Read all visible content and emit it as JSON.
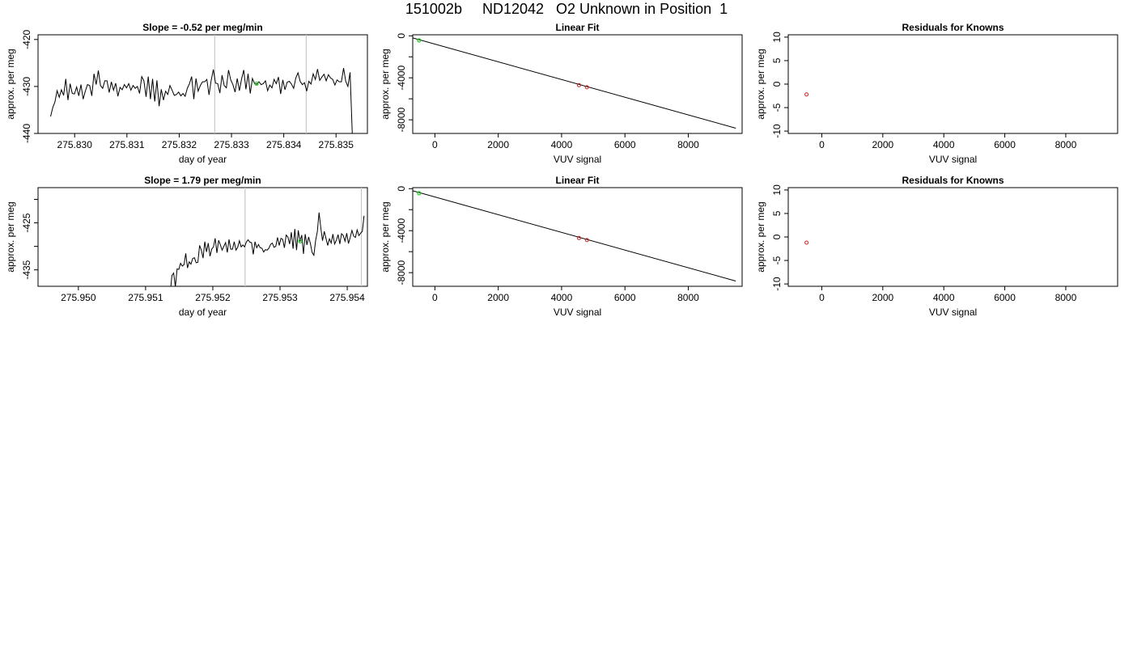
{
  "title": "151002b     ND12042   O2 Unknown in Position  1",
  "chart_data": [
    {
      "type": "line",
      "title": "Slope =  -0.52  per meg/min",
      "xlabel": "day of year",
      "ylabel": "approx. per meg",
      "xlim": [
        275.8293,
        275.8356
      ],
      "ylim": [
        -440,
        -419
      ],
      "xticks": [
        275.83,
        275.831,
        275.832,
        275.833,
        275.834,
        275.835
      ],
      "xtick_labels": [
        "275.830",
        "275.831",
        "275.832",
        "275.833",
        "275.834",
        "275.835"
      ],
      "yticks": [
        -440,
        -430,
        -420
      ],
      "ytick_labels": [
        "-440",
        "-430",
        "-420"
      ],
      "vlines": [
        275.83268,
        275.83443
      ],
      "marker": {
        "x": 275.83348,
        "y": -429.4
      },
      "series": [
        {
          "x_start": 275.82954,
          "x_end": 275.83531,
          "values": [
            -436.4,
            -434.5,
            -433.3,
            -430.9,
            -432.3,
            -430.7,
            -431.9,
            -428.4,
            -432.9,
            -429.4,
            -431.5,
            -431.6,
            -430.1,
            -432.0,
            -429.6,
            -432.7,
            -431.0,
            -429.6,
            -429.8,
            -432.0,
            -427.3,
            -429.6,
            -426.6,
            -429.8,
            -430.4,
            -428.8,
            -428.8,
            -431.3,
            -429.0,
            -430.8,
            -429.3,
            -432.1,
            -430.2,
            -430.7,
            -429.6,
            -430.3,
            -429.4,
            -430.8,
            -429.8,
            -430.4,
            -430.0,
            -431.5,
            -427.9,
            -428.8,
            -432.2,
            -427.9,
            -432.7,
            -428.4,
            -433.2,
            -428.7,
            -434.2,
            -430.6,
            -432.9,
            -431.0,
            -431.7,
            -429.8,
            -430.8,
            -431.9,
            -431.7,
            -431.2,
            -432.0,
            -431.5,
            -432.1,
            -430.4,
            -429.4,
            -427.9,
            -432.7,
            -428.3,
            -431.0,
            -429.8,
            -429.0,
            -429.0,
            -428.5,
            -431.8,
            -428.7,
            -426.4,
            -429.3,
            -429.4,
            -431.4,
            -427.6,
            -429.8,
            -430.3,
            -426.5,
            -428.6,
            -429.6,
            -431.2,
            -428.3,
            -430.9,
            -428.4,
            -426.5,
            -430.6,
            -427.3,
            -431.5,
            -428.3,
            -429.4,
            -429.5,
            -429.0,
            -429.6,
            -429.4,
            -428.8,
            -430.9,
            -429.7,
            -430.3,
            -428.5,
            -429.4,
            -428.0,
            -431.6,
            -428.6,
            -430.7,
            -429.1,
            -428.9,
            -429.5,
            -430.4,
            -428.2,
            -427.1,
            -428.9,
            -429.6,
            -429.2,
            -431.0,
            -428.9,
            -429.5,
            -427.3,
            -428.5,
            -426.3,
            -428.7,
            -428.0,
            -427.4,
            -428.8,
            -427.5,
            -428.2,
            -428.5,
            -429.7,
            -428.6,
            -429.0,
            -429.0,
            -426.1,
            -428.9,
            -430.0,
            -427.0,
            -440.0
          ]
        }
      ]
    },
    {
      "type": "scatter",
      "title": "Linear Fit",
      "xlabel": "VUV signal",
      "ylabel": "approx. per meg",
      "xlim": [
        -700,
        9700
      ],
      "ylim": [
        -9300,
        100
      ],
      "xticks": [
        0,
        2000,
        4000,
        6000,
        8000
      ],
      "xtick_labels": [
        "0",
        "2000",
        "4000",
        "6000",
        "8000"
      ],
      "yticks": [
        0,
        -4000,
        -8000
      ],
      "ytick_labels": [
        "0",
        "-4000",
        "-8000"
      ],
      "minor_yticks": [
        -2000,
        -6000
      ],
      "fit_line": {
        "x": [
          -700,
          9500
        ],
        "y": [
          -200,
          -8800
        ]
      },
      "points_green": [
        {
          "x": -500,
          "y": -430
        }
      ],
      "points_red": [
        {
          "x": 4550,
          "y": -4700
        },
        {
          "x": 4800,
          "y": -4900
        }
      ]
    },
    {
      "type": "scatter",
      "title": "Residuals for Knowns",
      "xlabel": "VUV signal",
      "ylabel": "approx. per meg",
      "xlim": [
        -1100,
        9700
      ],
      "ylim": [
        -10.5,
        10.5
      ],
      "xticks": [
        0,
        2000,
        4000,
        6000,
        8000
      ],
      "xtick_labels": [
        "0",
        "2000",
        "4000",
        "6000",
        "8000"
      ],
      "yticks": [
        -10,
        -5,
        0,
        5,
        10
      ],
      "ytick_labels": [
        "-10",
        "-5",
        "0",
        "5",
        "10"
      ],
      "points_red": [
        {
          "x": -500,
          "y": -2.2
        }
      ]
    },
    {
      "type": "line",
      "title": "Slope =  1.79  per meg/min",
      "xlabel": "day of year",
      "ylabel": "approx. per meg",
      "xlim": [
        275.9494,
        275.9543
      ],
      "ylim": [
        -438.5,
        -417.5
      ],
      "xticks": [
        275.95,
        275.951,
        275.952,
        275.953,
        275.954
      ],
      "xtick_labels": [
        "275.950",
        "275.951",
        "275.952",
        "275.953",
        "275.954"
      ],
      "yticks": [
        -435,
        -425
      ],
      "ytick_labels": [
        "-435",
        "-425"
      ],
      "minor_yticks": [
        -430,
        -420
      ],
      "vlines": [
        275.95248,
        275.95421
      ],
      "marker": {
        "x": 275.9533,
        "y": -428.9
      },
      "series": [
        {
          "x_start": 275.95134,
          "x_end": 275.95425,
          "values": [
            -438.6,
            -440.0,
            -436.2,
            -435.7,
            -438.6,
            -434.8,
            -434.9,
            -433.6,
            -434.2,
            -433.9,
            -431.5,
            -434.6,
            -433.3,
            -433.8,
            -432.6,
            -432.4,
            -433.5,
            -433.4,
            -429.8,
            -430.8,
            -432.5,
            -429.0,
            -431.2,
            -429.3,
            -432.1,
            -430.6,
            -430.1,
            -428.3,
            -431.4,
            -428.7,
            -429.7,
            -430.8,
            -430.0,
            -429.2,
            -431.3,
            -428.5,
            -430.6,
            -430.6,
            -429.0,
            -430.8,
            -430.2,
            -428.8,
            -430.1,
            -429.7,
            -430.1,
            -429.1,
            -428.6,
            -429.1,
            -429.2,
            -431.7,
            -429.0,
            -430.3,
            -429.6,
            -430.3,
            -430.4,
            -431.2,
            -430.7,
            -430.8,
            -430.4,
            -429.6,
            -429.3,
            -430.2,
            -430.0,
            -428.1,
            -429.8,
            -428.3,
            -428.5,
            -430.3,
            -427.6,
            -428.0,
            -429.5,
            -427.0,
            -430.5,
            -426.3,
            -430.8,
            -426.6,
            -429.0,
            -427.6,
            -431.6,
            -427.4,
            -429.7,
            -428.0,
            -429.4,
            -431.3,
            -431.9,
            -428.8,
            -426.9,
            -422.8,
            -426.0,
            -428.8,
            -426.8,
            -428.3,
            -429.8,
            -428.4,
            -429.3,
            -427.4,
            -429.5,
            -428.7,
            -427.5,
            -429.5,
            -427.3,
            -427.7,
            -428.9,
            -427.2,
            -429.4,
            -428.1,
            -426.6,
            -427.8,
            -428.1,
            -426.5,
            -427.7,
            -427.2,
            -426.8,
            -423.5
          ]
        }
      ]
    },
    {
      "type": "scatter",
      "title": "Linear Fit",
      "xlabel": "VUV signal",
      "ylabel": "approx. per meg",
      "xlim": [
        -700,
        9700
      ],
      "ylim": [
        -9300,
        100
      ],
      "xticks": [
        0,
        2000,
        4000,
        6000,
        8000
      ],
      "xtick_labels": [
        "0",
        "2000",
        "4000",
        "6000",
        "8000"
      ],
      "yticks": [
        0,
        -4000,
        -8000
      ],
      "ytick_labels": [
        "0",
        "-4000",
        "-8000"
      ],
      "minor_yticks": [
        -2000,
        -6000
      ],
      "fit_line": {
        "x": [
          -700,
          9500
        ],
        "y": [
          -200,
          -8800
        ]
      },
      "points_green": [
        {
          "x": -500,
          "y": -430
        }
      ],
      "points_red": [
        {
          "x": 4550,
          "y": -4700
        },
        {
          "x": 4800,
          "y": -4900
        }
      ]
    },
    {
      "type": "scatter",
      "title": "Residuals for Knowns",
      "xlabel": "VUV signal",
      "ylabel": "approx. per meg",
      "xlim": [
        -1100,
        9700
      ],
      "ylim": [
        -10.5,
        10.5
      ],
      "xticks": [
        0,
        2000,
        4000,
        6000,
        8000
      ],
      "xtick_labels": [
        "0",
        "2000",
        "4000",
        "6000",
        "8000"
      ],
      "yticks": [
        -10,
        -5,
        0,
        5,
        10
      ],
      "ytick_labels": [
        "-10",
        "-5",
        "0",
        "5",
        "10"
      ],
      "points_red": [
        {
          "x": -500,
          "y": -1.2
        }
      ]
    }
  ]
}
